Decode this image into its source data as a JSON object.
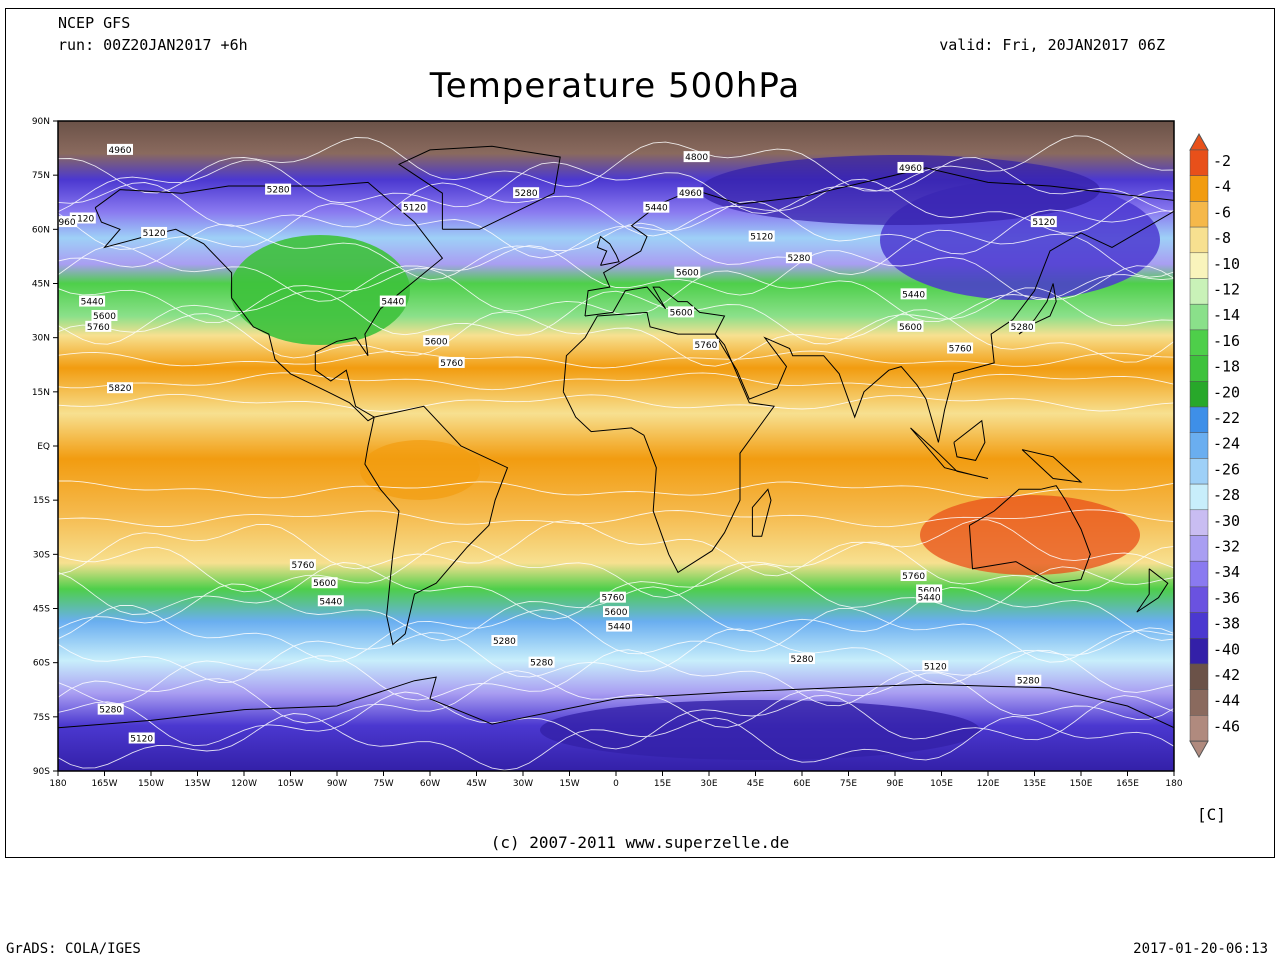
{
  "header": {
    "model": "NCEP GFS",
    "run": "run: 00Z20JAN2017 +6h",
    "valid": "valid: Fri, 20JAN2017 06Z",
    "title": "Temperature 500hPa"
  },
  "map": {
    "lat_labels": [
      "90N",
      "75N",
      "60N",
      "45N",
      "30N",
      "15N",
      "EQ",
      "15S",
      "30S",
      "45S",
      "60S",
      "75S",
      "90S"
    ],
    "lon_labels": [
      "180",
      "165W",
      "150W",
      "135W",
      "120W",
      "105W",
      "90W",
      "75W",
      "60W",
      "45W",
      "30W",
      "15W",
      "0",
      "15E",
      "30E",
      "45E",
      "60E",
      "75E",
      "90E",
      "105E",
      "120E",
      "135E",
      "150E",
      "165E",
      "180"
    ],
    "contour_labels": [
      {
        "text": "4960",
        "lon": -160,
        "lat": 82
      },
      {
        "text": "4800",
        "lon": 26,
        "lat": 80
      },
      {
        "text": "4960",
        "lon": 95,
        "lat": 77
      },
      {
        "text": "5280",
        "lon": -109,
        "lat": 71
      },
      {
        "text": "5280",
        "lon": -29,
        "lat": 70
      },
      {
        "text": "4960",
        "lon": 24,
        "lat": 70
      },
      {
        "text": "5120",
        "lon": -65,
        "lat": 66
      },
      {
        "text": "5440",
        "lon": 13,
        "lat": 66
      },
      {
        "text": "5120",
        "lon": -172,
        "lat": 63
      },
      {
        "text": "4960",
        "lon": -178,
        "lat": 62
      },
      {
        "text": "5120",
        "lon": -149,
        "lat": 59
      },
      {
        "text": "5120",
        "lon": 47,
        "lat": 58
      },
      {
        "text": "5120",
        "lon": 138,
        "lat": 62
      },
      {
        "text": "5280",
        "lon": 59,
        "lat": 52
      },
      {
        "text": "5600",
        "lon": 23,
        "lat": 48
      },
      {
        "text": "5440",
        "lon": 96,
        "lat": 42
      },
      {
        "text": "5440",
        "lon": -169,
        "lat": 40
      },
      {
        "text": "5600",
        "lon": -165,
        "lat": 36
      },
      {
        "text": "5760",
        "lon": -167,
        "lat": 33
      },
      {
        "text": "5440",
        "lon": -72,
        "lat": 40
      },
      {
        "text": "5600",
        "lon": 21,
        "lat": 37
      },
      {
        "text": "5280",
        "lon": 131,
        "lat": 33
      },
      {
        "text": "5600",
        "lon": 95,
        "lat": 33
      },
      {
        "text": "5600",
        "lon": -58,
        "lat": 29
      },
      {
        "text": "5760",
        "lon": 29,
        "lat": 28
      },
      {
        "text": "5760",
        "lon": 111,
        "lat": 27
      },
      {
        "text": "5760",
        "lon": -53,
        "lat": 23
      },
      {
        "text": "5820",
        "lon": -160,
        "lat": 16
      },
      {
        "text": "5760",
        "lon": -101,
        "lat": -33
      },
      {
        "text": "5600",
        "lon": -94,
        "lat": -38
      },
      {
        "text": "5440",
        "lon": -92,
        "lat": -43
      },
      {
        "text": "5760",
        "lon": -1,
        "lat": -42
      },
      {
        "text": "5600",
        "lon": 0,
        "lat": -46
      },
      {
        "text": "5440",
        "lon": 1,
        "lat": -50
      },
      {
        "text": "5280",
        "lon": -36,
        "lat": -54
      },
      {
        "text": "5280",
        "lon": -24,
        "lat": -60
      },
      {
        "text": "5760",
        "lon": 96,
        "lat": -36
      },
      {
        "text": "5600",
        "lon": 101,
        "lat": -40
      },
      {
        "text": "5440",
        "lon": 101,
        "lat": -42
      },
      {
        "text": "5280",
        "lon": 60,
        "lat": -59
      },
      {
        "text": "5120",
        "lon": 103,
        "lat": -61
      },
      {
        "text": "5280",
        "lon": 133,
        "lat": -65
      },
      {
        "text": "5280",
        "lon": -163,
        "lat": -73
      },
      {
        "text": "5120",
        "lon": -153,
        "lat": -81
      }
    ]
  },
  "legend": {
    "values": [
      "-2",
      "-4",
      "-6",
      "-8",
      "-10",
      "-12",
      "-14",
      "-16",
      "-18",
      "-20",
      "-22",
      "-24",
      "-26",
      "-28",
      "-30",
      "-32",
      "-34",
      "-36",
      "-38",
      "-40",
      "-42",
      "-44",
      "-46"
    ],
    "colors": [
      "#e8501a",
      "#f29c10",
      "#f5b84a",
      "#f7e090",
      "#f9f4bc",
      "#c9f2b8",
      "#8ae08a",
      "#4ecf4a",
      "#3ec23c",
      "#28a82a",
      "#3e8fe8",
      "#6aaef0",
      "#9ed0f7",
      "#c8eefb",
      "#c9bdf2",
      "#a99ef2",
      "#8a7af0",
      "#6a52e0",
      "#4b38d0",
      "#3320a8",
      "#6b5248",
      "#8a6a5e",
      "#b08a7e"
    ],
    "unit": "[C]"
  },
  "footer": {
    "copyright": "(c) 2007-2011 www.superzelle.de",
    "left": "GrADS: COLA/IGES",
    "right": "2017-01-20-06:13"
  }
}
